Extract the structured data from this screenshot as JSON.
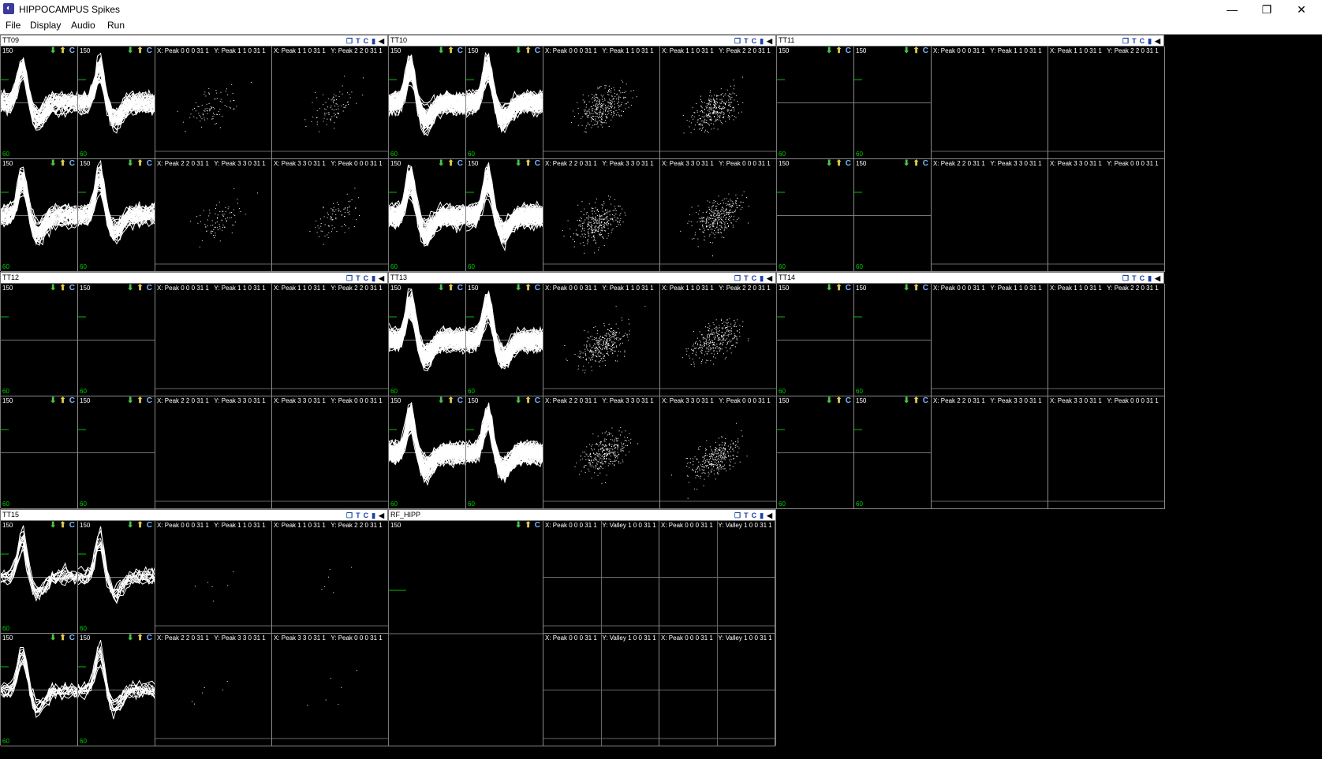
{
  "window": {
    "title": "HIPPOCAMPUS Spikes",
    "controls": {
      "minimize": "—",
      "restore": "❐",
      "close": "✕"
    }
  },
  "menu": [
    "File",
    "Display",
    "Audio",
    "Run"
  ],
  "header_icons": [
    "restore-icon",
    "t-icon",
    "clear-icon",
    "pause-icon",
    "audio-icon"
  ],
  "waveform": {
    "ymax": "150",
    "ymin": "60"
  },
  "colors": {
    "trace": "#ffffff",
    "min_label": "#00d000",
    "btn_down": "#49c549",
    "btn_up": "#e0d050",
    "btn_clear": "#7fb6ff"
  },
  "tetrode_groups": [
    {
      "name": "TT09",
      "activity": "low",
      "plots": [
        "X: Peak 0 0 0 31 1   Y: Peak 1 1 0 31 1",
        "X: Peak 1 1 0 31 1   Y: Peak 2 2 0 31 1",
        "X: Peak 2 2 0 31 1   Y: Peak 3 3 0 31 1",
        "X: Peak 3 3 0 31 1   Y: Peak 0 0 0 31 1"
      ]
    },
    {
      "name": "TT10",
      "activity": "high",
      "plots": [
        "X: Peak 0 0 0 31 1   Y: Peak 1 1 0 31 1",
        "X: Peak 1 1 0 31 1   Y: Peak 2 2 0 31 1",
        "X: Peak 2 2 0 31 1   Y: Peak 3 3 0 31 1",
        "X: Peak 3 3 0 31 1   Y: Peak 0 0 0 31 1"
      ]
    },
    {
      "name": "TT11",
      "activity": "none",
      "plots": [
        "X: Peak 0 0 0 31 1   Y: Peak 1 1 0 31 1",
        "X: Peak 1 1 0 31 1   Y: Peak 2 2 0 31 1",
        "X: Peak 2 2 0 31 1   Y: Peak 3 3 0 31 1",
        "X: Peak 3 3 0 31 1   Y: Peak 0 0 0 31 1"
      ]
    },
    {
      "name": "TT12",
      "activity": "none",
      "plots": [
        "X: Peak 0 0 0 31 1   Y: Peak 1 1 0 31 1",
        "X: Peak 1 1 0 31 1   Y: Peak 2 2 0 31 1",
        "X: Peak 2 2 0 31 1   Y: Peak 3 3 0 31 1",
        "X: Peak 3 3 0 31 1   Y: Peak 0 0 0 31 1"
      ]
    },
    {
      "name": "TT13",
      "activity": "high",
      "plots": [
        "X: Peak 0 0 0 31 1   Y: Peak 1 1 0 31 1",
        "X: Peak 1 1 0 31 1   Y: Peak 2 2 0 31 1",
        "X: Peak 2 2 0 31 1   Y: Peak 3 3 0 31 1",
        "X: Peak 3 3 0 31 1   Y: Peak 0 0 0 31 1"
      ]
    },
    {
      "name": "TT14",
      "activity": "none",
      "plots": [
        "X: Peak 0 0 0 31 1   Y: Peak 1 1 0 31 1",
        "X: Peak 1 1 0 31 1   Y: Peak 2 2 0 31 1",
        "X: Peak 2 2 0 31 1   Y: Peak 3 3 0 31 1",
        "X: Peak 3 3 0 31 1   Y: Peak 0 0 0 31 1"
      ]
    },
    {
      "name": "TT15",
      "activity": "sparse",
      "plots": [
        "X: Peak 0 0 0 31 1   Y: Peak 1 1 0 31 1",
        "X: Peak 1 1 0 31 1   Y: Peak 2 2 0 31 1",
        "X: Peak 2 2 0 31 1   Y: Peak 3 3 0 31 1",
        "X: Peak 3 3 0 31 1   Y: Peak 0 0 0 31 1"
      ]
    }
  ],
  "stereotrode_group": {
    "name": "RF_HIPP",
    "plots": [
      "X: Peak 0 0 0 31 1   Y: Valley 1 0 0 31 1",
      "X: Peak 0 0 0 31 1   Y: Valley 1 0 0 31 1",
      "X: Peak 0 0 0 31 1   Y: Valley 1 0 0 31 1",
      "X: Peak 0 0 0 31 1   Y: Valley 1 0 0 31 1"
    ]
  }
}
